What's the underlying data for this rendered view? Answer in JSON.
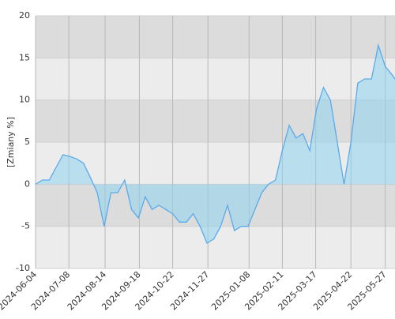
{
  "chart_data": {
    "type": "area",
    "y_label": "[Zmiany %]",
    "x": [
      "2024-06-04",
      "2024-06-11",
      "2024-06-18",
      "2024-06-25",
      "2024-07-02",
      "2024-07-09",
      "2024-07-16",
      "2024-07-23",
      "2024-07-30",
      "2024-08-06",
      "2024-08-13",
      "2024-08-20",
      "2024-08-27",
      "2024-09-03",
      "2024-09-10",
      "2024-09-17",
      "2024-09-24",
      "2024-10-01",
      "2024-10-08",
      "2024-10-15",
      "2024-10-22",
      "2024-10-29",
      "2024-11-05",
      "2024-11-12",
      "2024-11-19",
      "2024-11-26",
      "2024-12-03",
      "2024-12-10",
      "2024-12-17",
      "2024-12-24",
      "2024-12-31",
      "2025-01-07",
      "2025-01-14",
      "2025-01-21",
      "2025-01-28",
      "2025-02-04",
      "2025-02-11",
      "2025-02-18",
      "2025-02-25",
      "2025-03-04",
      "2025-03-11",
      "2025-03-18",
      "2025-03-25",
      "2025-04-01",
      "2025-04-08",
      "2025-04-15",
      "2025-04-22",
      "2025-04-29",
      "2025-05-06",
      "2025-05-13",
      "2025-05-20",
      "2025-05-27",
      "2025-06-03",
      "2025-06-06"
    ],
    "series": [
      {
        "color": "#5aaaea",
        "values": [
          0,
          0.5,
          0.5,
          2,
          3.5,
          3.3,
          3,
          2.5,
          0.8,
          -1,
          -5,
          -1,
          -1,
          0.5,
          -3,
          -4,
          -1.5,
          -3,
          -2.5,
          -3,
          -3.5,
          -4.5,
          -4.5,
          -3.5,
          -5,
          -7,
          -6.5,
          -5,
          -2.5,
          -5.5,
          -5,
          -5,
          -3,
          -1,
          0,
          0.5,
          4,
          7,
          5.5,
          6,
          4,
          9,
          11.5,
          10,
          5,
          0,
          5,
          12,
          12.5,
          12.5,
          16.5,
          14,
          13,
          12.5
        ]
      }
    ],
    "xlim": [
      "2024-06-04",
      "2025-06-06"
    ],
    "xticks": [
      "2024-06-04",
      "2024-07-08",
      "2024-08-14",
      "2024-09-18",
      "2024-10-22",
      "2024-11-27",
      "2025-01-08",
      "2025-02-11",
      "2025-03-17",
      "2025-04-22",
      "2025-05-27"
    ],
    "ylim": [
      -10,
      20
    ],
    "yticks": [
      -10,
      -5,
      0,
      5,
      10,
      15,
      20
    ],
    "grid": true
  }
}
